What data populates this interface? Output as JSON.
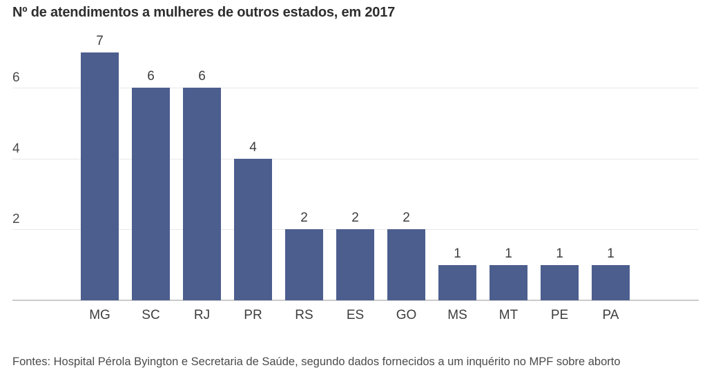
{
  "title": "Nº de atendimentos a mulheres de outros estados, em 2017",
  "footer": "Fontes: Hospital Pérola Byington e Secretaria de Saúde, segundo dados fornecidos a um inquérito no MPF sobre aborto",
  "colors": {
    "bar": "#4c5e8e",
    "gridline": "#e8e8e8",
    "axis_line": "#cbcbcb",
    "title_text": "#2e2e2e",
    "label_text": "#3d3d3d",
    "background": "#ffffff"
  },
  "chart_data": {
    "type": "bar",
    "title": "Nº de atendimentos a mulheres de outros estados, em 2017",
    "categories": [
      "MG",
      "SC",
      "RJ",
      "PR",
      "RS",
      "ES",
      "GO",
      "MS",
      "MT",
      "PE",
      "PA"
    ],
    "values": [
      7,
      6,
      6,
      4,
      2,
      2,
      2,
      1,
      1,
      1,
      1
    ],
    "yticks": [
      2,
      4,
      6
    ],
    "ylim": [
      0,
      7.7
    ],
    "xlabel": "",
    "ylabel": "",
    "grid": true,
    "legend": false,
    "value_labels": true,
    "bar_color": "#4c5e8e",
    "source_note": "Fontes: Hospital Pérola Byington e Secretaria de Saúde, segundo dados fornecidos a um inquérito no MPF sobre aborto"
  }
}
